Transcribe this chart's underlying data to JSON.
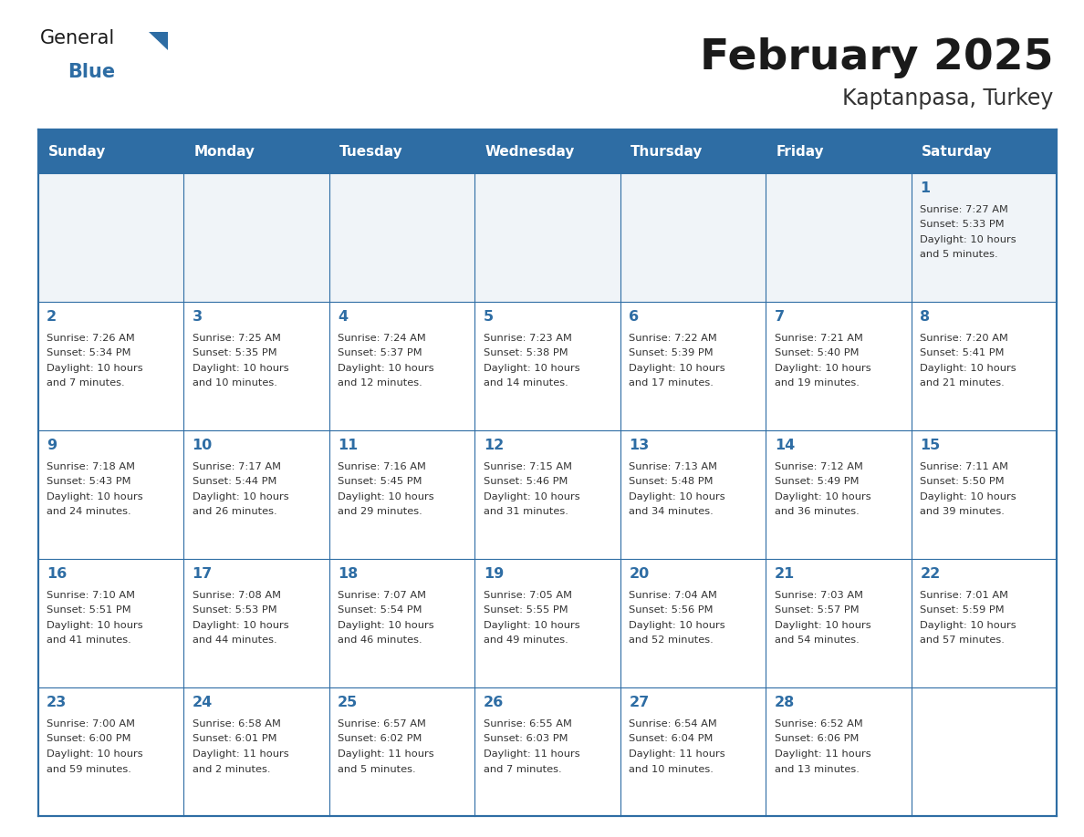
{
  "title": "February 2025",
  "subtitle": "Kaptanpasa, Turkey",
  "days_of_week": [
    "Sunday",
    "Monday",
    "Tuesday",
    "Wednesday",
    "Thursday",
    "Friday",
    "Saturday"
  ],
  "header_bg": "#2E6DA4",
  "header_text": "#FFFFFF",
  "cell_bg": "#FFFFFF",
  "row1_bg": "#F0F4F8",
  "border_color": "#2E6DA4",
  "title_color": "#1a1a1a",
  "subtitle_color": "#333333",
  "day_num_color": "#2E6DA4",
  "cell_text_color": "#333333",
  "logo_general_color": "#1a1a1a",
  "logo_blue_color": "#2E6DA4",
  "logo_triangle_color": "#2E6DA4",
  "calendar_data": [
    [
      null,
      null,
      null,
      null,
      null,
      null,
      {
        "day": "1",
        "sunrise": "7:27 AM",
        "sunset": "5:33 PM",
        "daylight": "10 hours\nand 5 minutes."
      }
    ],
    [
      {
        "day": "2",
        "sunrise": "7:26 AM",
        "sunset": "5:34 PM",
        "daylight": "10 hours\nand 7 minutes."
      },
      {
        "day": "3",
        "sunrise": "7:25 AM",
        "sunset": "5:35 PM",
        "daylight": "10 hours\nand 10 minutes."
      },
      {
        "day": "4",
        "sunrise": "7:24 AM",
        "sunset": "5:37 PM",
        "daylight": "10 hours\nand 12 minutes."
      },
      {
        "day": "5",
        "sunrise": "7:23 AM",
        "sunset": "5:38 PM",
        "daylight": "10 hours\nand 14 minutes."
      },
      {
        "day": "6",
        "sunrise": "7:22 AM",
        "sunset": "5:39 PM",
        "daylight": "10 hours\nand 17 minutes."
      },
      {
        "day": "7",
        "sunrise": "7:21 AM",
        "sunset": "5:40 PM",
        "daylight": "10 hours\nand 19 minutes."
      },
      {
        "day": "8",
        "sunrise": "7:20 AM",
        "sunset": "5:41 PM",
        "daylight": "10 hours\nand 21 minutes."
      }
    ],
    [
      {
        "day": "9",
        "sunrise": "7:18 AM",
        "sunset": "5:43 PM",
        "daylight": "10 hours\nand 24 minutes."
      },
      {
        "day": "10",
        "sunrise": "7:17 AM",
        "sunset": "5:44 PM",
        "daylight": "10 hours\nand 26 minutes."
      },
      {
        "day": "11",
        "sunrise": "7:16 AM",
        "sunset": "5:45 PM",
        "daylight": "10 hours\nand 29 minutes."
      },
      {
        "day": "12",
        "sunrise": "7:15 AM",
        "sunset": "5:46 PM",
        "daylight": "10 hours\nand 31 minutes."
      },
      {
        "day": "13",
        "sunrise": "7:13 AM",
        "sunset": "5:48 PM",
        "daylight": "10 hours\nand 34 minutes."
      },
      {
        "day": "14",
        "sunrise": "7:12 AM",
        "sunset": "5:49 PM",
        "daylight": "10 hours\nand 36 minutes."
      },
      {
        "day": "15",
        "sunrise": "7:11 AM",
        "sunset": "5:50 PM",
        "daylight": "10 hours\nand 39 minutes."
      }
    ],
    [
      {
        "day": "16",
        "sunrise": "7:10 AM",
        "sunset": "5:51 PM",
        "daylight": "10 hours\nand 41 minutes."
      },
      {
        "day": "17",
        "sunrise": "7:08 AM",
        "sunset": "5:53 PM",
        "daylight": "10 hours\nand 44 minutes."
      },
      {
        "day": "18",
        "sunrise": "7:07 AM",
        "sunset": "5:54 PM",
        "daylight": "10 hours\nand 46 minutes."
      },
      {
        "day": "19",
        "sunrise": "7:05 AM",
        "sunset": "5:55 PM",
        "daylight": "10 hours\nand 49 minutes."
      },
      {
        "day": "20",
        "sunrise": "7:04 AM",
        "sunset": "5:56 PM",
        "daylight": "10 hours\nand 52 minutes."
      },
      {
        "day": "21",
        "sunrise": "7:03 AM",
        "sunset": "5:57 PM",
        "daylight": "10 hours\nand 54 minutes."
      },
      {
        "day": "22",
        "sunrise": "7:01 AM",
        "sunset": "5:59 PM",
        "daylight": "10 hours\nand 57 minutes."
      }
    ],
    [
      {
        "day": "23",
        "sunrise": "7:00 AM",
        "sunset": "6:00 PM",
        "daylight": "10 hours\nand 59 minutes."
      },
      {
        "day": "24",
        "sunrise": "6:58 AM",
        "sunset": "6:01 PM",
        "daylight": "11 hours\nand 2 minutes."
      },
      {
        "day": "25",
        "sunrise": "6:57 AM",
        "sunset": "6:02 PM",
        "daylight": "11 hours\nand 5 minutes."
      },
      {
        "day": "26",
        "sunrise": "6:55 AM",
        "sunset": "6:03 PM",
        "daylight": "11 hours\nand 7 minutes."
      },
      {
        "day": "27",
        "sunrise": "6:54 AM",
        "sunset": "6:04 PM",
        "daylight": "11 hours\nand 10 minutes."
      },
      {
        "day": "28",
        "sunrise": "6:52 AM",
        "sunset": "6:06 PM",
        "daylight": "11 hours\nand 13 minutes."
      },
      null
    ]
  ]
}
